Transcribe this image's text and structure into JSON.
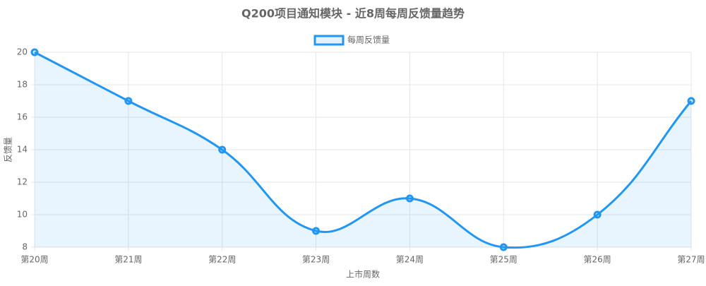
{
  "chart_data": {
    "type": "line",
    "title": "Q200项目通知模块 - 近8周每周反馈量趋势",
    "x_label": "上市周数",
    "y_label": "反馈量",
    "categories": [
      "第20周",
      "第21周",
      "第22周",
      "第23周",
      "第24周",
      "第25周",
      "第26周",
      "第27周"
    ],
    "series": [
      {
        "name": "每周反馈量",
        "color": "#2196f3",
        "values": [
          20,
          17,
          14,
          9,
          11,
          8,
          10,
          17
        ]
      }
    ],
    "ylim": [
      8,
      20
    ],
    "yticks": [
      8,
      10,
      12,
      14,
      16,
      18,
      20
    ],
    "grid": true,
    "fill": true,
    "legend": "top"
  }
}
